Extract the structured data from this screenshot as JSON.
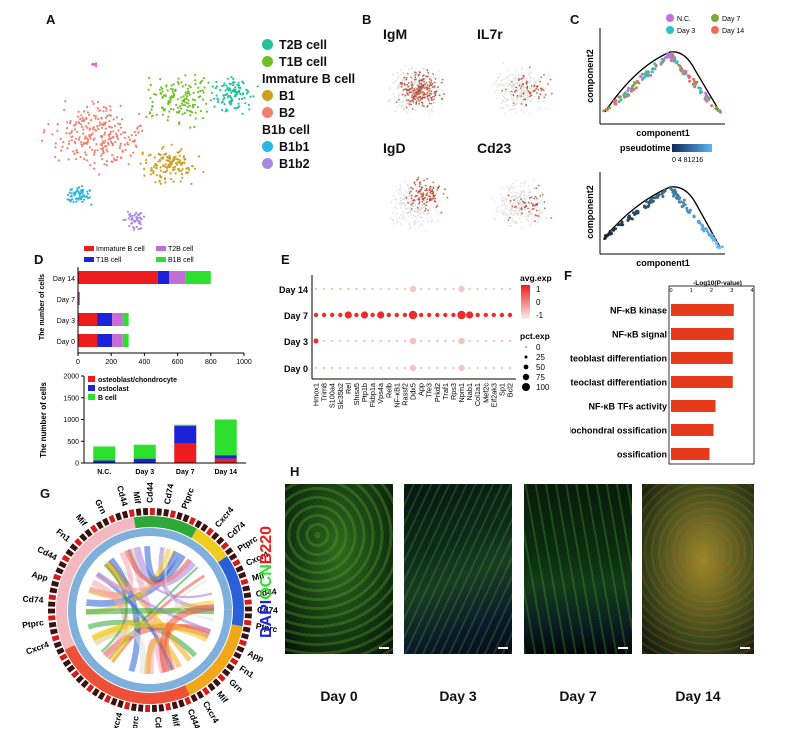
{
  "panels": {
    "A": "A",
    "B": "B",
    "C": "C",
    "D": "D",
    "E": "E",
    "F": "F",
    "G": "G",
    "H": "H"
  },
  "panelA": {
    "legend": [
      {
        "label": "T2B cell",
        "color": "#22c39b",
        "header": false
      },
      {
        "label": "T1B cell",
        "color": "#6fbf2a",
        "header": false
      },
      {
        "label": "Immature B cell",
        "color": "",
        "header": true
      },
      {
        "label": "B1",
        "color": "#c9a020",
        "header": false
      },
      {
        "label": "B2",
        "color": "#f08070",
        "header": false
      },
      {
        "label": "B1b cell",
        "color": "",
        "header": true
      },
      {
        "label": "B1b1",
        "color": "#2bb5e0",
        "header": false
      },
      {
        "label": "B1b2",
        "color": "#a88be0",
        "header": false
      }
    ]
  },
  "panelB": {
    "titles": [
      "IgM",
      "IL7r",
      "IgD",
      "Cd23"
    ]
  },
  "panelC": {
    "legend": [
      "N.C.",
      "Day 7",
      "Day 3",
      "Day 14"
    ],
    "legend_colors": [
      "#c070e0",
      "#7aa83a",
      "#30c0c0",
      "#f06a5a"
    ],
    "xlabel": "component1",
    "ylabel": "component2",
    "pseudotime_label": "pseudotime",
    "pseudotime_ticks": "0 4 81216"
  },
  "chart_data": [
    {
      "type": "bar",
      "title": "",
      "ylabel": "The number of cells",
      "categories": [
        "Day 14",
        "Day 7",
        "Day 3",
        "Day 0"
      ],
      "series": [
        {
          "name": "Immature B cell",
          "color": "#ee1c1c",
          "values": [
            480,
            5,
            115,
            115
          ]
        },
        {
          "name": "T1B cell",
          "color": "#1c22d8",
          "values": [
            70,
            2,
            90,
            90
          ]
        },
        {
          "name": "T2B cell",
          "color": "#c46fd8",
          "values": [
            100,
            2,
            65,
            65
          ]
        },
        {
          "name": "B1B cell",
          "color": "#2ee02e",
          "values": [
            150,
            2,
            35,
            35
          ]
        }
      ],
      "xticks": [
        "0",
        "200",
        "400",
        "600",
        "800",
        "1000"
      ],
      "xlim": [
        0,
        1000
      ]
    },
    {
      "type": "bar",
      "title": "",
      "ylabel": "The number of cells",
      "categories": [
        "N.C.",
        "Day 3",
        "Day 7",
        "Day 14"
      ],
      "series": [
        {
          "name": "osteoblast/chondrocyte",
          "color": "#ee1c1c",
          "values": [
            0,
            0,
            450,
            100
          ]
        },
        {
          "name": "ostoclast",
          "color": "#1c22d8",
          "values": [
            60,
            100,
            400,
            80
          ]
        },
        {
          "name": "B cell",
          "color": "#2ee02e",
          "values": [
            320,
            320,
            30,
            820
          ]
        }
      ],
      "yticks": [
        "0",
        "500",
        "1000",
        "1500",
        "2000"
      ],
      "ylim": [
        0,
        2000
      ]
    },
    {
      "type": "scatter",
      "title": "",
      "genes": [
        "Hmox1",
        "Trim8",
        "S100a4",
        "Slc35b2",
        "Rel",
        "Shisa5",
        "Ptp1b",
        "Fkbp1a",
        "Vps4a",
        "Relb",
        "NF-κB1",
        "Rassf2",
        "Ddx5",
        "App",
        "Tfe3",
        "Prkd2",
        "Traf1",
        "Rps3",
        "Npm1",
        "Nab1",
        "Col1a1",
        "Mef2c",
        "Eif2ak3",
        "Sp1",
        "Bcl2"
      ],
      "days": [
        "Day 14",
        "Day 7",
        "Day 3",
        "Day 0"
      ],
      "avg_exp_label": "avg.exp",
      "avg_exp_ticks": [
        "1",
        "0",
        "-1"
      ],
      "pct_exp_label": "pct.exp",
      "pct_exp_ticks": [
        "0",
        "25",
        "50",
        "75",
        "100"
      ]
    },
    {
      "type": "bar",
      "title": "",
      "xlabel": "-Log10(P-value)",
      "xticks": [
        "0",
        "1",
        "2",
        "3",
        "4"
      ],
      "categories": [
        "NF-κB kinase",
        "NF-κB signal",
        "osteoblast differentiation",
        "osteoclast differentiation",
        "NF-κB TFs activity",
        "endochondral ossification",
        "ossification"
      ],
      "values": [
        3.1,
        3.1,
        3.05,
        3.05,
        2.2,
        2.1,
        1.9
      ],
      "xlim": [
        0,
        4
      ],
      "color": "#e63a1a"
    }
  ],
  "panelG": {
    "left_genes": [
      "Cxcr4",
      "Ptprc",
      "Cd74",
      "App",
      "Cd44",
      "Fn1",
      "Mif",
      "Grn",
      "Cd44"
    ],
    "top_genes": [
      "Mif",
      "Cd44",
      "Cd74",
      "Ptprc"
    ],
    "right_genes": [
      "Cxcr4",
      "Cd74",
      "Ptprc",
      "Cxcr4",
      "Mif",
      "Cd44",
      "Cd74",
      "Ptprc"
    ],
    "bottom_genes": [
      "App",
      "Fn1",
      "Grn",
      "Mif",
      "Cxcr4",
      "Cd44",
      "Mif",
      "Cd74",
      "Ptprc",
      "Cxcr4"
    ]
  },
  "panelH": {
    "ylabel_dapi": "DAPI",
    "ylabel_ocn": "OCN",
    "ylabel_b220": "B220",
    "days": [
      "Day 0",
      "Day 3",
      "Day 7",
      "Day 14"
    ]
  }
}
